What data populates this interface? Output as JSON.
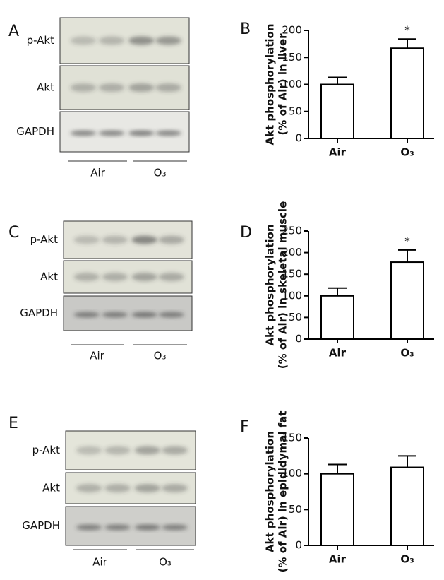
{
  "blots": [
    {
      "panel": "A",
      "rows": [
        "p-Akt",
        "Akt",
        "GAPDH"
      ],
      "groups": [
        "Air",
        "O₃"
      ]
    },
    {
      "panel": "C",
      "rows": [
        "p-Akt",
        "Akt",
        "GAPDH"
      ],
      "groups": [
        "Air",
        "O₃"
      ]
    },
    {
      "panel": "E",
      "rows": [
        "p-Akt",
        "Akt",
        "GAPDH"
      ],
      "groups": [
        "Air",
        "O₃"
      ]
    }
  ],
  "chart_data": [
    {
      "type": "bar",
      "panel": "B",
      "y_label": [
        "Akt phosphorylation",
        "(% of Air) in liver"
      ],
      "categories": [
        "Air",
        "O₃"
      ],
      "values": [
        100,
        167
      ],
      "errors": [
        13,
        17
      ],
      "color": "#ffffff",
      "ylim": [
        0,
        200
      ],
      "yticks": [
        0,
        50,
        100,
        150,
        200
      ],
      "annotations": [
        {
          "text": "*",
          "category": "O₃"
        }
      ]
    },
    {
      "type": "bar",
      "panel": "D",
      "y_label": [
        "Akt phosphorylation",
        "(% of Air) in skeletal muscle"
      ],
      "categories": [
        "Air",
        "O₃"
      ],
      "values": [
        100,
        178
      ],
      "errors": [
        18,
        28
      ],
      "color": "#ffffff",
      "ylim": [
        0,
        250
      ],
      "yticks": [
        0,
        50,
        100,
        150,
        200,
        250
      ],
      "annotations": [
        {
          "text": "*",
          "category": "O₃"
        }
      ]
    },
    {
      "type": "bar",
      "panel": "F",
      "y_label": [
        "Akt phosphorylation",
        "(% of Air) in epididymal fat"
      ],
      "categories": [
        "Air",
        "O₃"
      ],
      "values": [
        100,
        109
      ],
      "errors": [
        13,
        16
      ],
      "color": "#ffffff",
      "ylim": [
        0,
        150
      ],
      "yticks": [
        0,
        50,
        100,
        150
      ]
    }
  ]
}
